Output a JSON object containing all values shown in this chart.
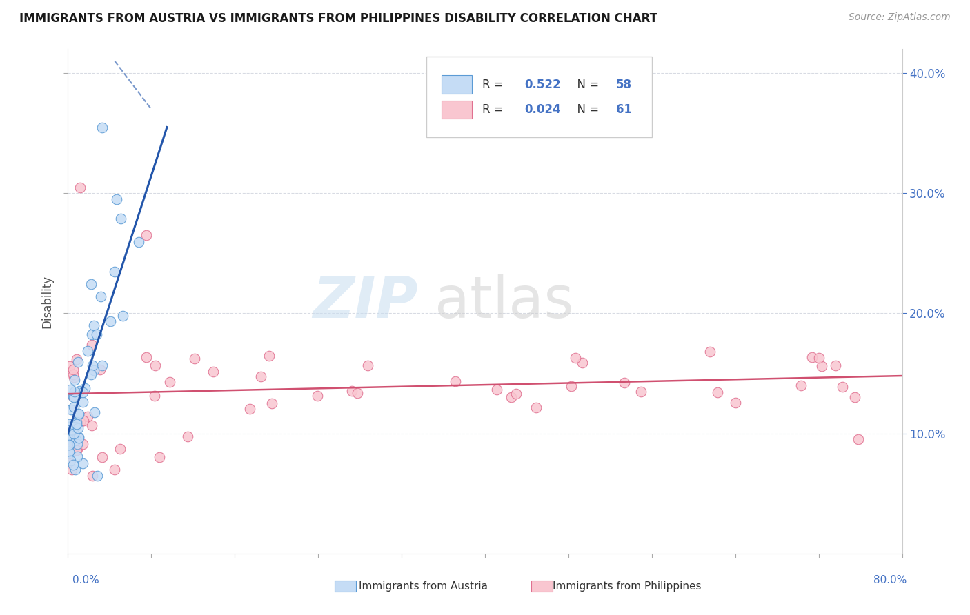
{
  "title": "IMMIGRANTS FROM AUSTRIA VS IMMIGRANTS FROM PHILIPPINES DISABILITY CORRELATION CHART",
  "source": "Source: ZipAtlas.com",
  "ylabel": "Disability",
  "r_austria": 0.522,
  "n_austria": 58,
  "r_philippines": 0.024,
  "n_philippines": 61,
  "xlim": [
    0.0,
    0.8
  ],
  "ylim": [
    0.0,
    0.42
  ],
  "color_austria_fill": "#c5dcf5",
  "color_austria_edge": "#5b9bd5",
  "color_austria_line": "#2255aa",
  "color_philippines_fill": "#f9c6d0",
  "color_philippines_edge": "#e07090",
  "color_philippines_line": "#d05070",
  "color_grid": "#c8cdd8",
  "color_right_axis": "#4472C4",
  "yticks": [
    0.1,
    0.2,
    0.3,
    0.4
  ],
  "xtick_count": 11,
  "austria_seed": 77,
  "philippines_seed": 42
}
